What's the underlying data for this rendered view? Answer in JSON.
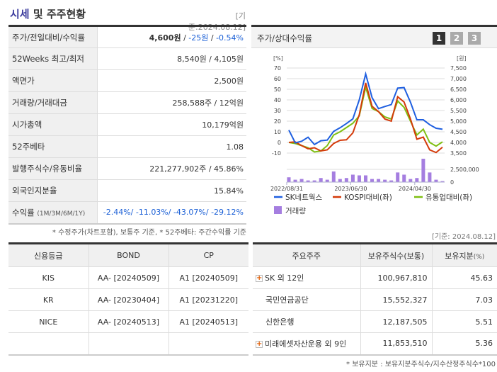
{
  "header": {
    "title_hl": "시세",
    "title_rest": " 및 주주현황",
    "asof": "[기준:2024.08.12]"
  },
  "info": [
    {
      "label": "주가/전일대비/수익률",
      "price": "4,600원",
      "sep1": " / ",
      "change": "-25원",
      "sep2": " / ",
      "rate": "-0.54%"
    },
    {
      "label": "52Weeks 최고/최저",
      "value": "8,540원 / 4,105원"
    },
    {
      "label": "액면가",
      "value": "2,500원"
    },
    {
      "label": "거래량/거래대금",
      "value": "258,588주 / 12억원"
    },
    {
      "label": "시가총액",
      "value": "10,179억원"
    },
    {
      "label": "52주베타",
      "value": "1.08"
    },
    {
      "label": "발행주식수/유동비율",
      "value": "221,277,902주 / 45.86%"
    },
    {
      "label": "외국인지분율",
      "value": "15.84%"
    },
    {
      "label": "수익률",
      "label_sub": "(1M/3M/6M/1Y)",
      "value": "-2.44%/ -11.03%/ -43.07%/ -29.12%"
    }
  ],
  "note1": "* 수정주가(차트포함), 보통주 기준, * 52주베타: 주간수익률 기준",
  "chart_panel": {
    "title": "주가/상대수익률",
    "pages": [
      "1",
      "2",
      "3"
    ],
    "active_page": "1"
  },
  "chart_data": {
    "type": "line",
    "left_unit": "[%]",
    "right_unit": "[원]",
    "left_ticks": [
      "70",
      "60",
      "50",
      "40",
      "30",
      "20",
      "10",
      "0",
      "-10"
    ],
    "right_ticks": [
      "7,500",
      "7,000",
      "6,500",
      "6,000",
      "5,500",
      "5,000",
      "4,500",
      "4,000",
      "3,500"
    ],
    "volume_ticks": [
      "2,500,000",
      "0"
    ],
    "ylim": [
      -10,
      70
    ],
    "right_ylim": [
      3500,
      7500
    ],
    "x_ticks": [
      "2022/08/31",
      "2023/06/30",
      "2024/04/30"
    ],
    "grid": true,
    "legend": "bottom",
    "series": [
      {
        "name": "SK네트웍스",
        "color": "#1f5fe0",
        "values": [
          11.6,
          -0.4,
          1.1,
          4.9,
          -2,
          1.6,
          2.2,
          10.4,
          13.8,
          17.8,
          22.2,
          40,
          64.4,
          42.2,
          31.8,
          33.8,
          35.6,
          51.1,
          51.6,
          37.8,
          21.3,
          21.3,
          16.7,
          13.3,
          12.4
        ]
      },
      {
        "name": "KOSPI대비(좌)",
        "color": "#d43a0a",
        "values": [
          0,
          0.5,
          -3,
          -6,
          -5,
          -8,
          -7,
          -1,
          2,
          2.5,
          9,
          26,
          56,
          34,
          29,
          22,
          20,
          43,
          38,
          22,
          3,
          5,
          -7,
          -9.5,
          -4.5
        ]
      },
      {
        "name": "유통업대비(좌)",
        "color": "#7fbf12",
        "values": [
          0,
          -1,
          -3,
          -5,
          -9,
          -8,
          -3,
          7,
          10,
          14,
          18,
          25,
          52,
          32,
          29,
          24,
          22,
          39,
          33,
          20,
          7,
          12.5,
          0,
          -3.5,
          0.5
        ]
      }
    ],
    "volume": {
      "name": "거래량",
      "color": "#a57ee0",
      "values": [
        940000,
        470000,
        610000,
        330000,
        330000,
        800000,
        470000,
        2080000,
        610000,
        800000,
        1460000,
        1320000,
        1320000,
        610000,
        610000,
        470000,
        330000,
        1890000,
        1460000,
        610000,
        800000,
        4580000,
        1890000,
        470000,
        190000
      ]
    }
  },
  "credit": {
    "headers": [
      "신용등급",
      "BOND",
      "CP"
    ],
    "rows": [
      [
        "KIS",
        "AA-  [20240509]",
        "A1  [20240509]"
      ],
      [
        "KR",
        "AA-  [20230404]",
        "A1  [20231220]"
      ],
      [
        "NICE",
        "AA-  [20240513]",
        "A1  [20240513]"
      ],
      [
        "",
        "",
        ""
      ]
    ]
  },
  "holders": {
    "asof": "[기준: 2024.08.12]",
    "headers": [
      "주요주주",
      "보유주식수(보통)",
      "보유지분",
      "(%)"
    ],
    "rows": [
      {
        "name": "SK 외 12인",
        "expand": true,
        "shares": "100,967,810",
        "pct": "45.63"
      },
      {
        "name": "국민연금공단",
        "expand": false,
        "shares": "15,552,327",
        "pct": "7.03"
      },
      {
        "name": "신한은행",
        "expand": false,
        "shares": "12,187,505",
        "pct": "5.51"
      },
      {
        "name": "미래에셋자산운용 외 9인",
        "expand": true,
        "shares": "11,853,510",
        "pct": "5.36"
      }
    ],
    "note": "* 보유지분 : 보유지분주식수/지수산정주식수*100"
  }
}
